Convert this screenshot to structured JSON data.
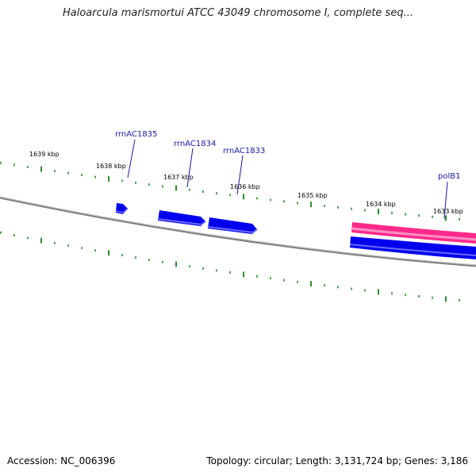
{
  "title": "Haloarcula marismortui ATCC 43049 chromosome I, complete seq...",
  "footer": {
    "accession": "Accession: NC_006396",
    "stats": "Topology: circular; Length: 3,131,724 bp; Genes: 3,186"
  },
  "colors": {
    "backbone": "#808080",
    "tick": "#2e8b2e",
    "forward_gene": "#0000ee",
    "rrna": "#ff2a8a",
    "gene_label": "#1a1aa0"
  },
  "scale_labels": [
    "1639 kbp",
    "1638 kbp",
    "1637 kbp",
    "1636 kbp",
    "1635 kbp",
    "1634 kbp",
    "1633 kbp"
  ],
  "genes": [
    {
      "label": "rrnAC1835"
    },
    {
      "label": "rrnAC1834"
    },
    {
      "label": "rrnAC1833"
    },
    {
      "label": "polB1"
    }
  ]
}
